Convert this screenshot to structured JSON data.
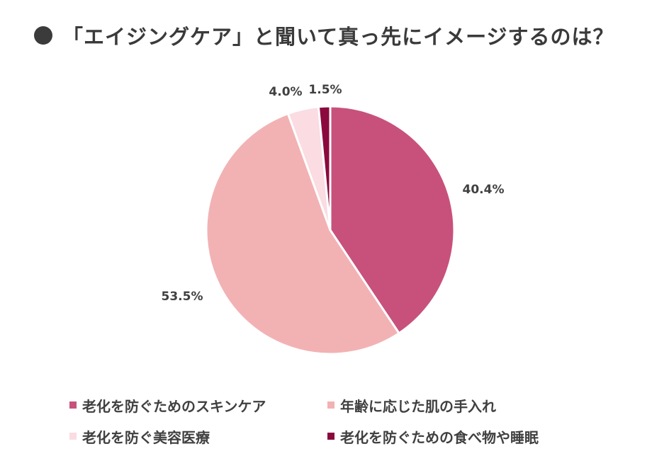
{
  "title": "「エイジングケア」と聞いて真っ先にイメージするのは？",
  "chart_data": {
    "type": "pie",
    "categories": [
      "老化を防ぐためのスキンケア",
      "年齢に応じた肌の手入れ",
      "老化を防ぐ美容医療",
      "老化を防ぐための食べ物や睡眠"
    ],
    "values": [
      40.4,
      53.5,
      4.0,
      1.5
    ],
    "labels": [
      "40.4%",
      "53.5%",
      "4.0%",
      "1.5%"
    ],
    "colors": [
      "#c8517c",
      "#f2b2b4",
      "#fadce2",
      "#8b0a3e"
    ],
    "legend_position": "bottom"
  }
}
